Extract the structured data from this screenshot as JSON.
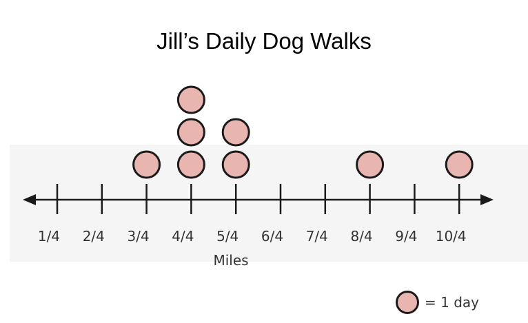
{
  "chart_data": {
    "type": "scatter",
    "title": "Jill’s Daily Dog Walks",
    "xlabel": "Miles",
    "ylabel": "",
    "categories": [
      "1/4",
      "2/4",
      "3/4",
      "4/4",
      "5/4",
      "6/4",
      "7/4",
      "8/4",
      "9/4",
      "10/4"
    ],
    "counts": [
      0,
      0,
      1,
      3,
      2,
      0,
      0,
      1,
      0,
      1
    ],
    "grid": false,
    "legend": {
      "label": "= 1 day",
      "placement": "bottom-right"
    },
    "colors": {
      "dot_fill": "#e8b5b1",
      "dot_stroke": "#1a1a1a",
      "axis": "#1a1a1a"
    }
  }
}
